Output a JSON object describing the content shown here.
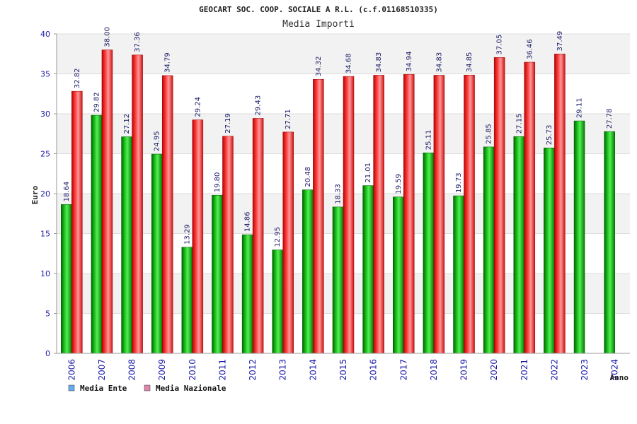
{
  "chart_data": {
    "type": "bar",
    "title": "GEOCART SOC. COOP. SOCIALE A R.L. (c.f.01168510335)",
    "subtitle": "Media Importi",
    "xlabel": "Anno",
    "ylabel": "Euro",
    "ylim": [
      0,
      40
    ],
    "yticks": [
      0,
      5,
      10,
      15,
      20,
      25,
      30,
      35,
      40
    ],
    "grid": true,
    "legend_position": "bottom-left",
    "categories": [
      "2006",
      "2007",
      "2008",
      "2009",
      "2010",
      "2011",
      "2012",
      "2013",
      "2014",
      "2015",
      "2016",
      "2017",
      "2018",
      "2019",
      "2020",
      "2021",
      "2022",
      "2023",
      "2024"
    ],
    "series": [
      {
        "name": "Media Ente",
        "color": "#00aa00",
        "legend_color": "#6aaaee",
        "values": [
          18.64,
          29.82,
          27.12,
          24.95,
          13.29,
          19.8,
          14.86,
          12.95,
          20.48,
          18.33,
          21.01,
          19.59,
          25.11,
          19.73,
          25.85,
          27.15,
          25.73,
          29.11,
          27.78
        ],
        "labels": [
          "18.64",
          "29.82",
          "27.12",
          "24.95",
          "13.29",
          "19.80",
          "14.86",
          "12.95",
          "20.48",
          "18.33",
          "21.01",
          "19.59",
          "25.11",
          "19.73",
          "25.85",
          "27.15",
          "25.73",
          "29.11",
          "27.78"
        ]
      },
      {
        "name": "Media Nazionale",
        "color": "#ee2222",
        "legend_color": "#dd88aa",
        "values": [
          32.82,
          38.0,
          37.36,
          34.79,
          29.24,
          27.19,
          29.43,
          27.71,
          34.32,
          34.68,
          34.83,
          34.94,
          34.83,
          34.85,
          37.05,
          36.46,
          37.49,
          null,
          null
        ],
        "labels": [
          "32.82",
          "38.00",
          "37.36",
          "34.79",
          "29.24",
          "27.19",
          "29.43",
          "27.71",
          "34.32",
          "34.68",
          "34.83",
          "34.94",
          "34.83",
          "34.85",
          "37.05",
          "36.46",
          "37.49",
          null,
          null
        ]
      }
    ]
  }
}
